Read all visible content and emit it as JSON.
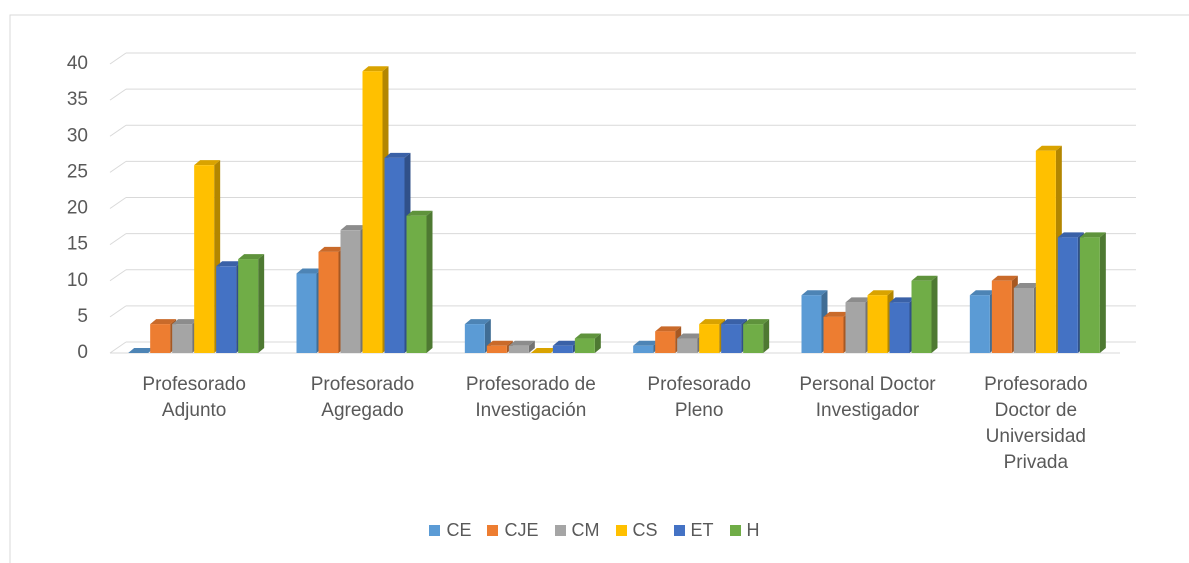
{
  "chart_data": {
    "type": "bar3d",
    "categories": [
      "Profesorado Adjunto",
      "Profesorado Agregado",
      "Profesorado de Investigación",
      "Profesorado Pleno",
      "Personal Doctor Investigador",
      "Profesorado Doctor de Universidad Privada"
    ],
    "series": [
      {
        "name": "CE",
        "color": "#5b9bd5",
        "values": [
          0,
          11,
          4,
          1,
          8,
          8
        ]
      },
      {
        "name": "CJE",
        "color": "#ed7d31",
        "values": [
          4,
          14,
          1,
          3,
          5,
          10
        ]
      },
      {
        "name": "CM",
        "color": "#a5a5a5",
        "values": [
          4,
          17,
          1,
          2,
          7,
          9
        ]
      },
      {
        "name": "CS",
        "color": "#ffc000",
        "values": [
          26,
          39,
          0,
          4,
          8,
          28
        ]
      },
      {
        "name": "ET",
        "color": "#4472c4",
        "values": [
          12,
          27,
          1,
          4,
          7,
          16
        ]
      },
      {
        "name": "H",
        "color": "#70ad47",
        "values": [
          13,
          19,
          2,
          4,
          10,
          16
        ]
      }
    ],
    "ylim": [
      0,
      40
    ],
    "yticks": [
      0,
      5,
      10,
      15,
      20,
      25,
      30,
      35,
      40
    ],
    "grid": true,
    "legend": "bottom"
  }
}
